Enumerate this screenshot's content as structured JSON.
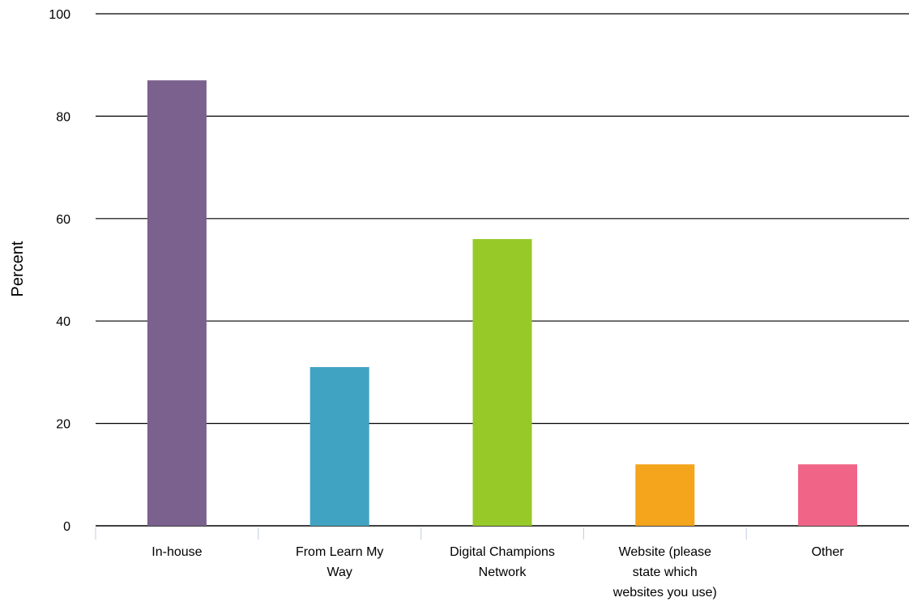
{
  "chart_data": {
    "type": "bar",
    "categories": [
      [
        "In-house"
      ],
      [
        "From Learn My",
        "Way"
      ],
      [
        "Digital Champions",
        "Network"
      ],
      [
        "Website (please",
        "state which",
        "websites you use)"
      ],
      [
        "Other"
      ]
    ],
    "values": [
      87,
      31,
      56,
      12,
      12
    ],
    "colors": [
      "#7b618e",
      "#41a3c2",
      "#97c928",
      "#f4a51c",
      "#ef6487"
    ],
    "ylabel": "Percent",
    "xlabel": "",
    "ylim": [
      0,
      100
    ],
    "yticks": [
      0,
      20,
      40,
      60,
      80,
      100
    ],
    "grid": true
  }
}
